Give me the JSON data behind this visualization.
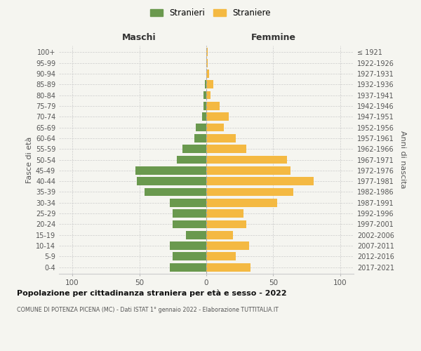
{
  "age_groups": [
    "0-4",
    "5-9",
    "10-14",
    "15-19",
    "20-24",
    "25-29",
    "30-34",
    "35-39",
    "40-44",
    "45-49",
    "50-54",
    "55-59",
    "60-64",
    "65-69",
    "70-74",
    "75-79",
    "80-84",
    "85-89",
    "90-94",
    "95-99",
    "100+"
  ],
  "birth_years": [
    "2017-2021",
    "2012-2016",
    "2007-2011",
    "2002-2006",
    "1997-2001",
    "1992-1996",
    "1987-1991",
    "1982-1986",
    "1977-1981",
    "1972-1976",
    "1967-1971",
    "1962-1966",
    "1957-1961",
    "1952-1956",
    "1947-1951",
    "1942-1946",
    "1937-1941",
    "1932-1936",
    "1927-1931",
    "1922-1926",
    "≤ 1921"
  ],
  "maschi": [
    27,
    25,
    27,
    15,
    25,
    25,
    27,
    46,
    52,
    53,
    22,
    18,
    9,
    8,
    3,
    2,
    2,
    1,
    0,
    0,
    0
  ],
  "femmine": [
    33,
    22,
    32,
    20,
    30,
    28,
    53,
    65,
    80,
    63,
    60,
    30,
    22,
    13,
    17,
    10,
    3,
    5,
    2,
    1,
    1
  ],
  "maschi_color": "#6a994e",
  "femmine_color": "#f4b942",
  "background_color": "#f5f5f0",
  "grid_color": "#cccccc",
  "title": "Popolazione per cittadinanza straniera per età e sesso - 2022",
  "subtitle": "COMUNE DI POTENZA PICENA (MC) - Dati ISTAT 1° gennaio 2022 - Elaborazione TUTTITALIA.IT",
  "header_maschi": "Maschi",
  "header_femmine": "Femmine",
  "ylabel_left": "Fasce di età",
  "ylabel_right": "Anni di nascita",
  "legend_maschi": "Stranieri",
  "legend_femmine": "Straniere",
  "xlim": 110
}
